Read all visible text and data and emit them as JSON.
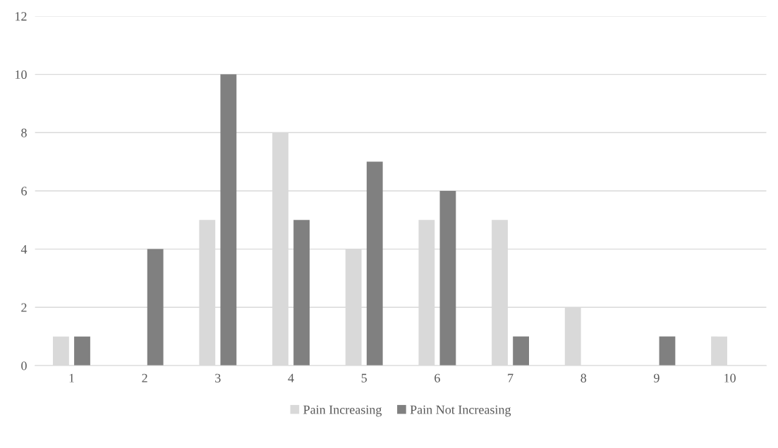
{
  "chart_data": {
    "type": "bar",
    "categories": [
      "1",
      "2",
      "3",
      "4",
      "5",
      "6",
      "7",
      "8",
      "9",
      "10"
    ],
    "series": [
      {
        "name": "Pain Increasing",
        "color": "#d9d9d9",
        "values": [
          1,
          0,
          5,
          8,
          4,
          5,
          5,
          2,
          0,
          1
        ]
      },
      {
        "name": "Pain Not Increasing",
        "color": "#808080",
        "values": [
          1,
          4,
          10,
          5,
          7,
          6,
          1,
          0,
          1,
          0
        ]
      }
    ],
    "ylim": [
      0,
      12
    ],
    "yticks": [
      0,
      2,
      4,
      6,
      8,
      10,
      12
    ],
    "grid": "y",
    "legend": "bottom"
  }
}
